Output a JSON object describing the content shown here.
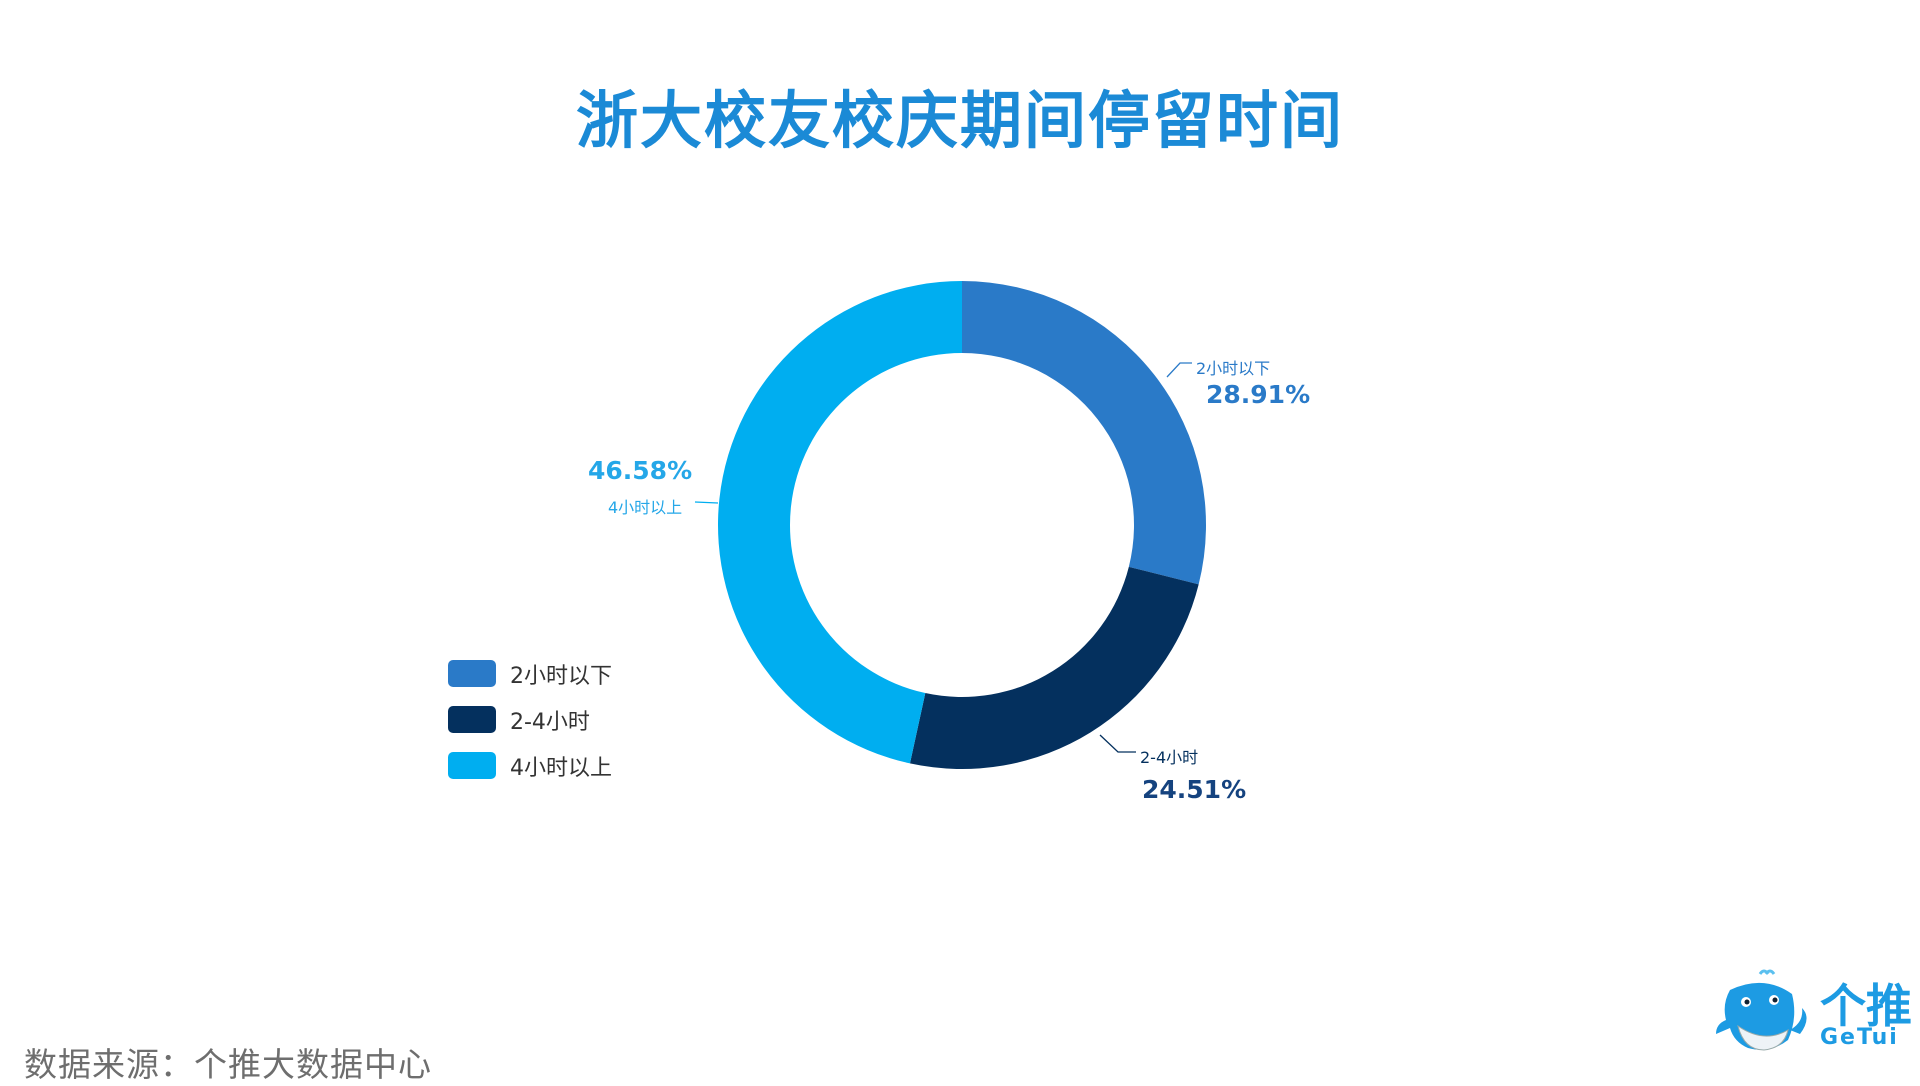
{
  "title": "浙大校友校庆期间停留时间",
  "chart_data": {
    "type": "pie",
    "subtype": "donut",
    "title": "浙大校友校庆期间停留时间",
    "categories": [
      "2小时以下",
      "2-4小时",
      "4小时以上"
    ],
    "values": [
      28.91,
      24.51,
      46.58
    ],
    "unit": "%",
    "colors": [
      "#2a7ac8",
      "#04305e",
      "#00aef0"
    ],
    "data_labels": [
      "28.91%",
      "24.51%",
      "46.58%"
    ],
    "legend_position": "left-bottom",
    "start_angle": "12 o'clock, clockwise"
  },
  "labels": {
    "seg1_name": "2小时以下",
    "seg1_pct": "28.91%",
    "seg2_name": "2-4小时",
    "seg2_pct": "24.51%",
    "seg3_name": "4小时以上",
    "seg3_pct": "46.58%"
  },
  "legend": {
    "items": [
      {
        "label": "2小时以下",
        "color": "#2a7ac8"
      },
      {
        "label": "2-4小时",
        "color": "#04305e"
      },
      {
        "label": "4小时以上",
        "color": "#00aef0"
      }
    ]
  },
  "footer": {
    "source": "数据来源：个推大数据中心"
  },
  "logo": {
    "cn": "个推",
    "en": "GeTui"
  }
}
